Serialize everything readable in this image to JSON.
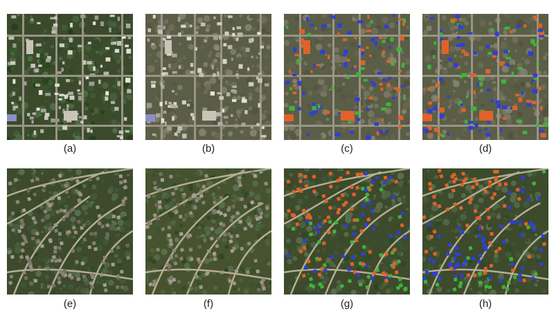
{
  "figure": {
    "panels": [
      {
        "label": "(a)",
        "kind": "satellite-pre",
        "scene": "grid-town"
      },
      {
        "label": "(b)",
        "kind": "satellite-post",
        "scene": "grid-town"
      },
      {
        "label": "(c)",
        "kind": "damage-overlay",
        "scene": "grid-town"
      },
      {
        "label": "(d)",
        "kind": "damage-overlay",
        "scene": "grid-town"
      },
      {
        "label": "(e)",
        "kind": "satellite-pre",
        "scene": "curved-suburb"
      },
      {
        "label": "(f)",
        "kind": "satellite-post",
        "scene": "curved-suburb"
      },
      {
        "label": "(g)",
        "kind": "damage-overlay",
        "scene": "curved-suburb"
      },
      {
        "label": "(h)",
        "kind": "damage-overlay",
        "scene": "curved-suburb"
      }
    ]
  },
  "colors": {
    "overlay_blue": "#2f3fd6",
    "overlay_orange": "#e0622a",
    "overlay_green": "#3fb43c",
    "vegetation_dark": "#3c4a2c",
    "vegetation_light": "#5e6b44",
    "road": "#9a9486"
  }
}
